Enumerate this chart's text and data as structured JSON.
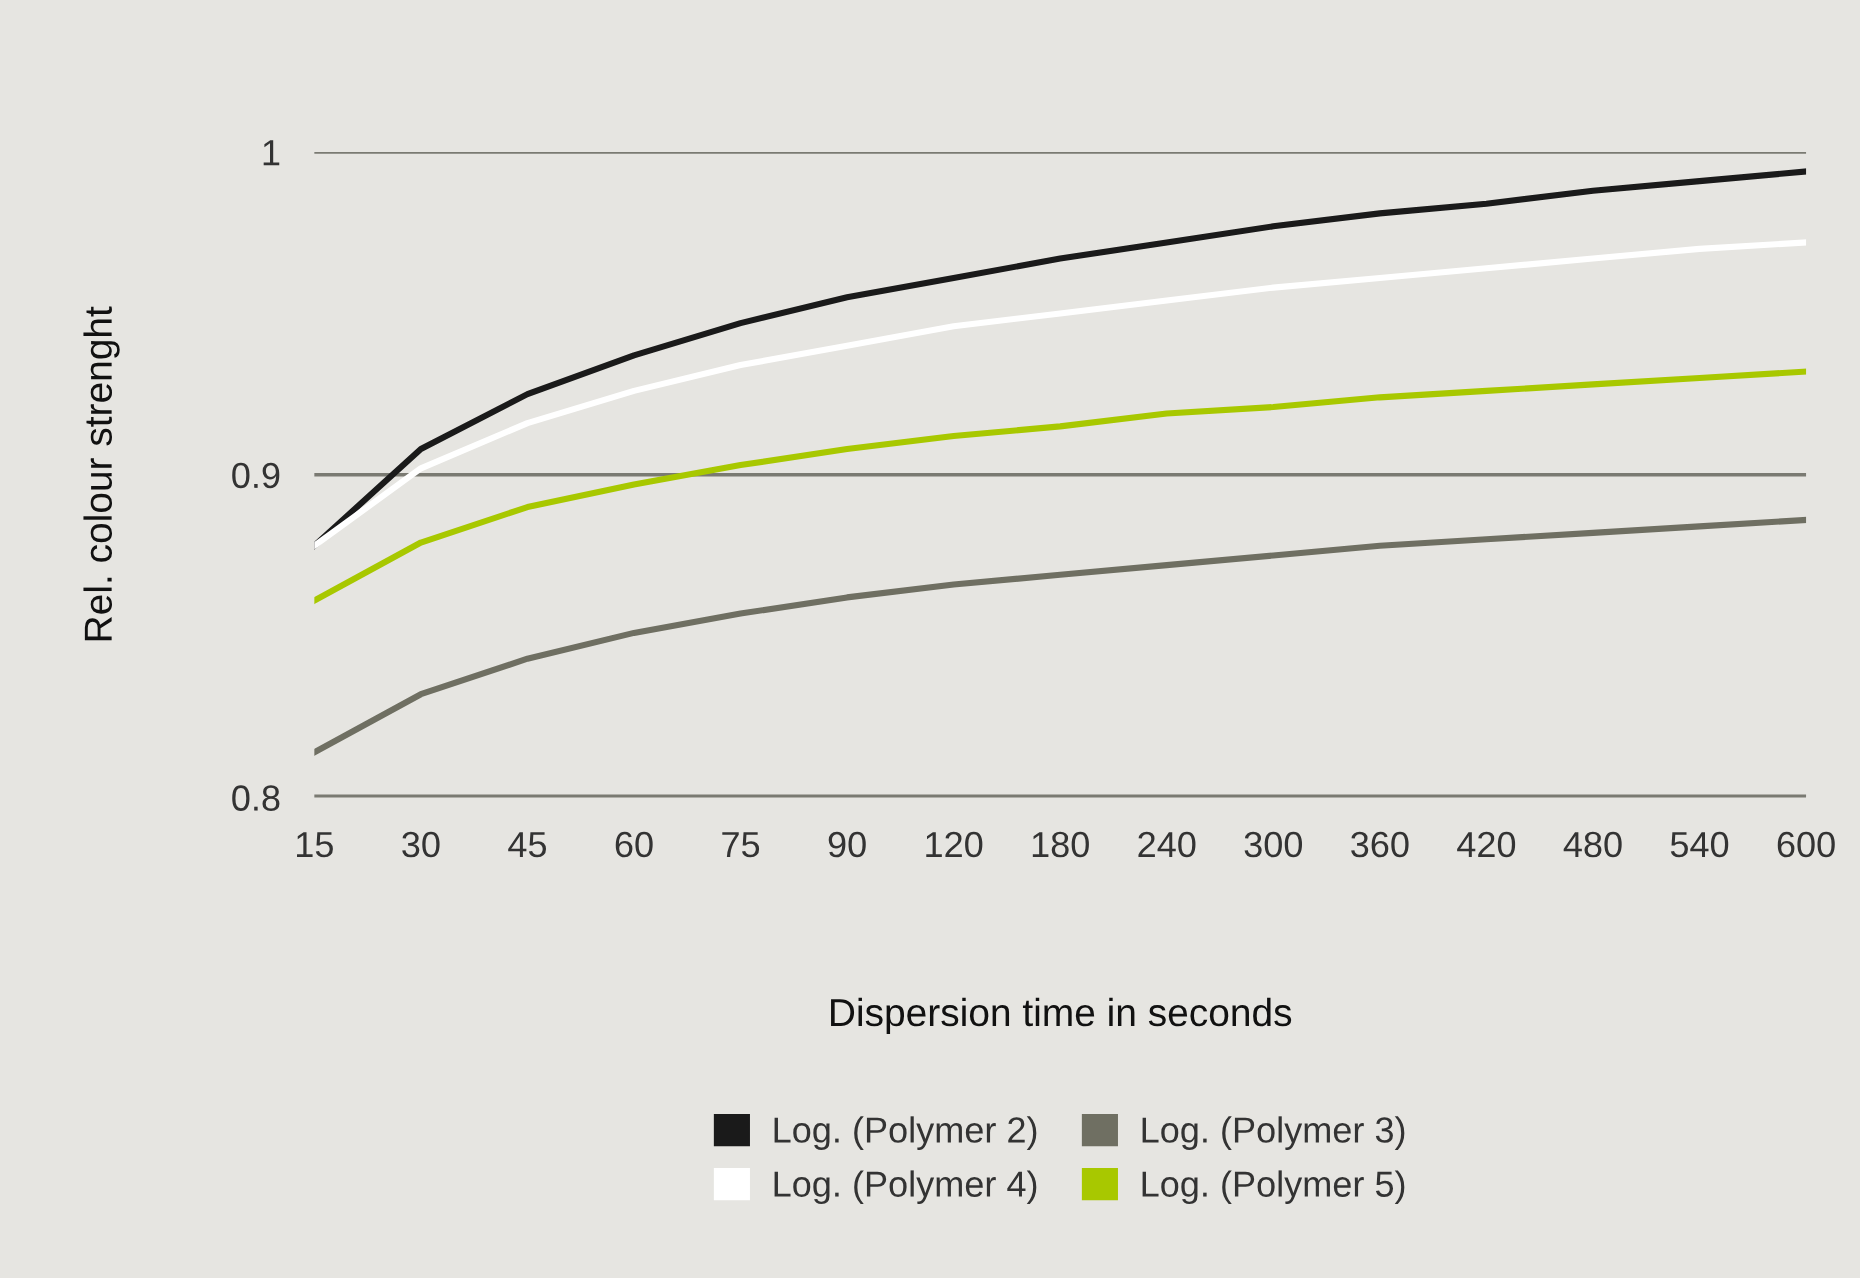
{
  "chart_data": {
    "type": "line",
    "xlabel": "Dispersion time in seconds",
    "ylabel": "Rel. colour strenght",
    "categories": [
      "15",
      "30",
      "45",
      "60",
      "75",
      "90",
      "120",
      "180",
      "240",
      "300",
      "360",
      "420",
      "480",
      "540",
      "600"
    ],
    "series": [
      {
        "name": "Log. (Polymer 2)",
        "color": "#1a1a1a",
        "values": [
          0.878,
          0.908,
          0.925,
          0.937,
          0.947,
          0.955,
          0.961,
          0.967,
          0.972,
          0.977,
          0.981,
          0.984,
          0.988,
          0.991,
          0.994
        ]
      },
      {
        "name": "Log. (Polymer 3)",
        "color": "#6f6f62",
        "values": [
          0.814,
          0.832,
          0.843,
          0.851,
          0.857,
          0.862,
          0.866,
          0.869,
          0.872,
          0.875,
          0.878,
          0.88,
          0.882,
          0.884,
          0.886
        ]
      },
      {
        "name": "Log. (Polymer 4)",
        "color": "#ffffff",
        "values": [
          0.878,
          0.902,
          0.916,
          0.926,
          0.934,
          0.94,
          0.946,
          0.95,
          0.954,
          0.958,
          0.961,
          0.964,
          0.967,
          0.97,
          0.972
        ]
      },
      {
        "name": "Log. (Polymer 5)",
        "color": "#a8c800",
        "values": [
          0.861,
          0.879,
          0.89,
          0.897,
          0.903,
          0.908,
          0.912,
          0.915,
          0.919,
          0.921,
          0.924,
          0.926,
          0.928,
          0.93,
          0.932
        ]
      }
    ],
    "ylim": [
      0.8,
      1
    ],
    "yticks": [
      0.8,
      0.9,
      1
    ],
    "grid": "y",
    "legend": "bottom",
    "marker": "none",
    "line_style": "solid"
  }
}
